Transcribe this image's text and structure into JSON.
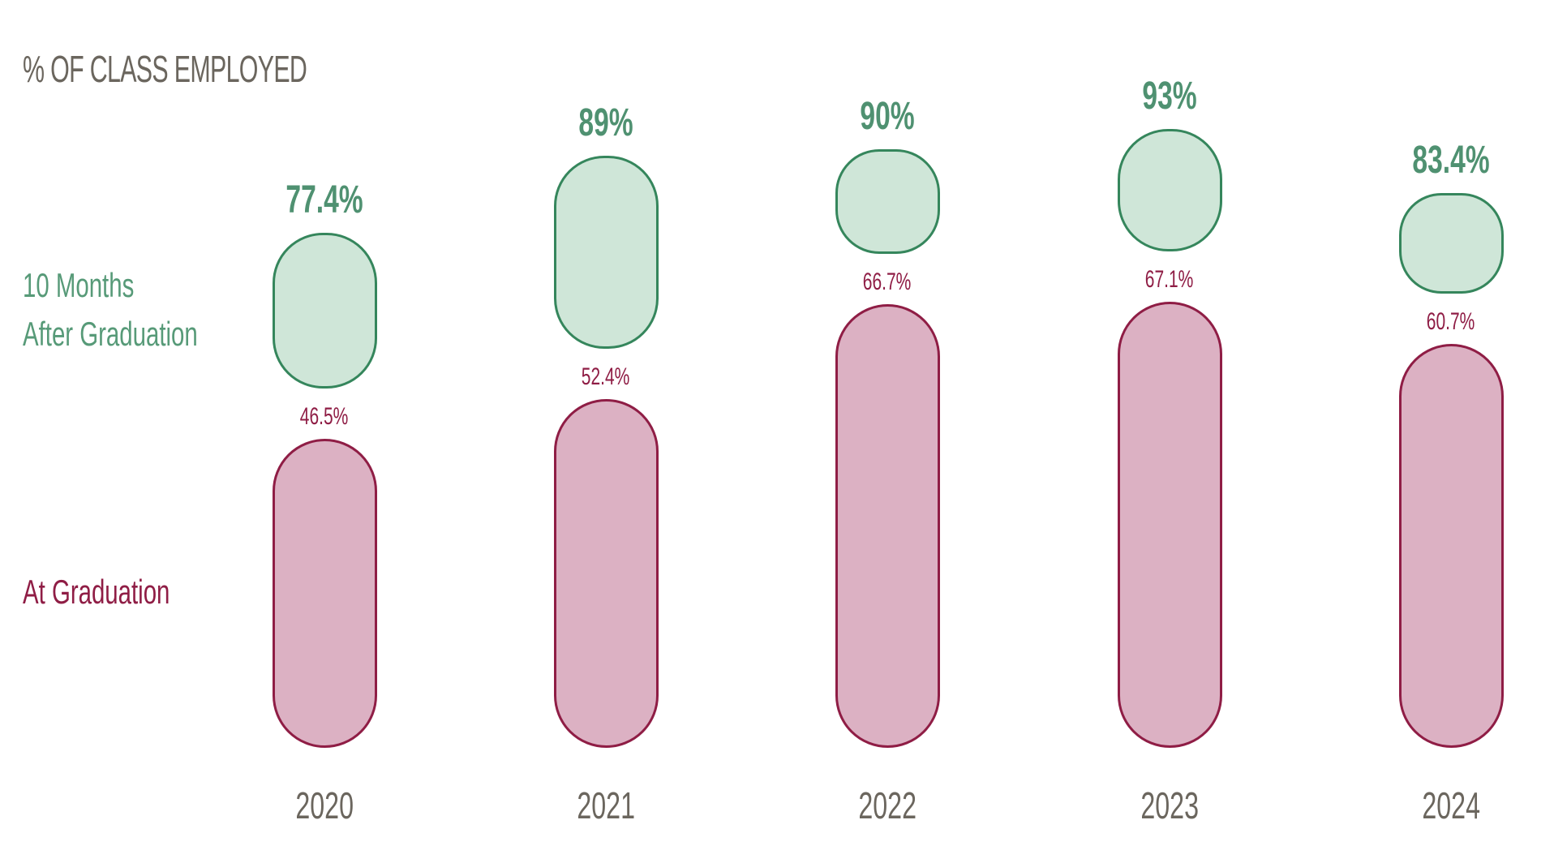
{
  "title": "% OF CLASS EMPLOYED",
  "colors": {
    "title_text": "#6b665e",
    "year_text": "#6b665e",
    "green_fill": "#cfe6d8",
    "green_stroke": "#35865c",
    "green_text": "#4f9171",
    "green_legend_text": "#579a78",
    "pink_fill": "#dcb1c3",
    "pink_stroke": "#8f1d45",
    "pink_text": "#8f1d45",
    "background": "#ffffff"
  },
  "chart_data": {
    "type": "bar",
    "title": "% OF CLASS EMPLOYED",
    "categories": [
      "2020",
      "2021",
      "2022",
      "2023",
      "2024"
    ],
    "series": [
      {
        "name": "At Graduation",
        "label_lines": [
          "At Graduation"
        ],
        "values": [
          46.5,
          52.4,
          66.7,
          67.1,
          60.7
        ],
        "labels": [
          "46.5%",
          "52.4%",
          "66.7%",
          "67.1%",
          "60.7%"
        ],
        "fill": "#dcb1c3",
        "stroke": "#8f1d45",
        "label_color": "#8f1d45"
      },
      {
        "name": "10 Months After Graduation",
        "label_lines": [
          "10 Months",
          "After Graduation"
        ],
        "values": [
          77.4,
          89,
          90,
          93,
          83.4
        ],
        "labels": [
          "77.4%",
          "89%",
          "90%",
          "93%",
          "83.4%"
        ],
        "fill": "#cfe6d8",
        "stroke": "#35865c",
        "label_color": "#4f9171"
      }
    ],
    "xlabel": "",
    "ylabel": "% of class employed",
    "ylim": [
      0,
      100
    ],
    "grid": false,
    "legend_position": "left",
    "bar_style": "rounded-pill-stacked"
  }
}
